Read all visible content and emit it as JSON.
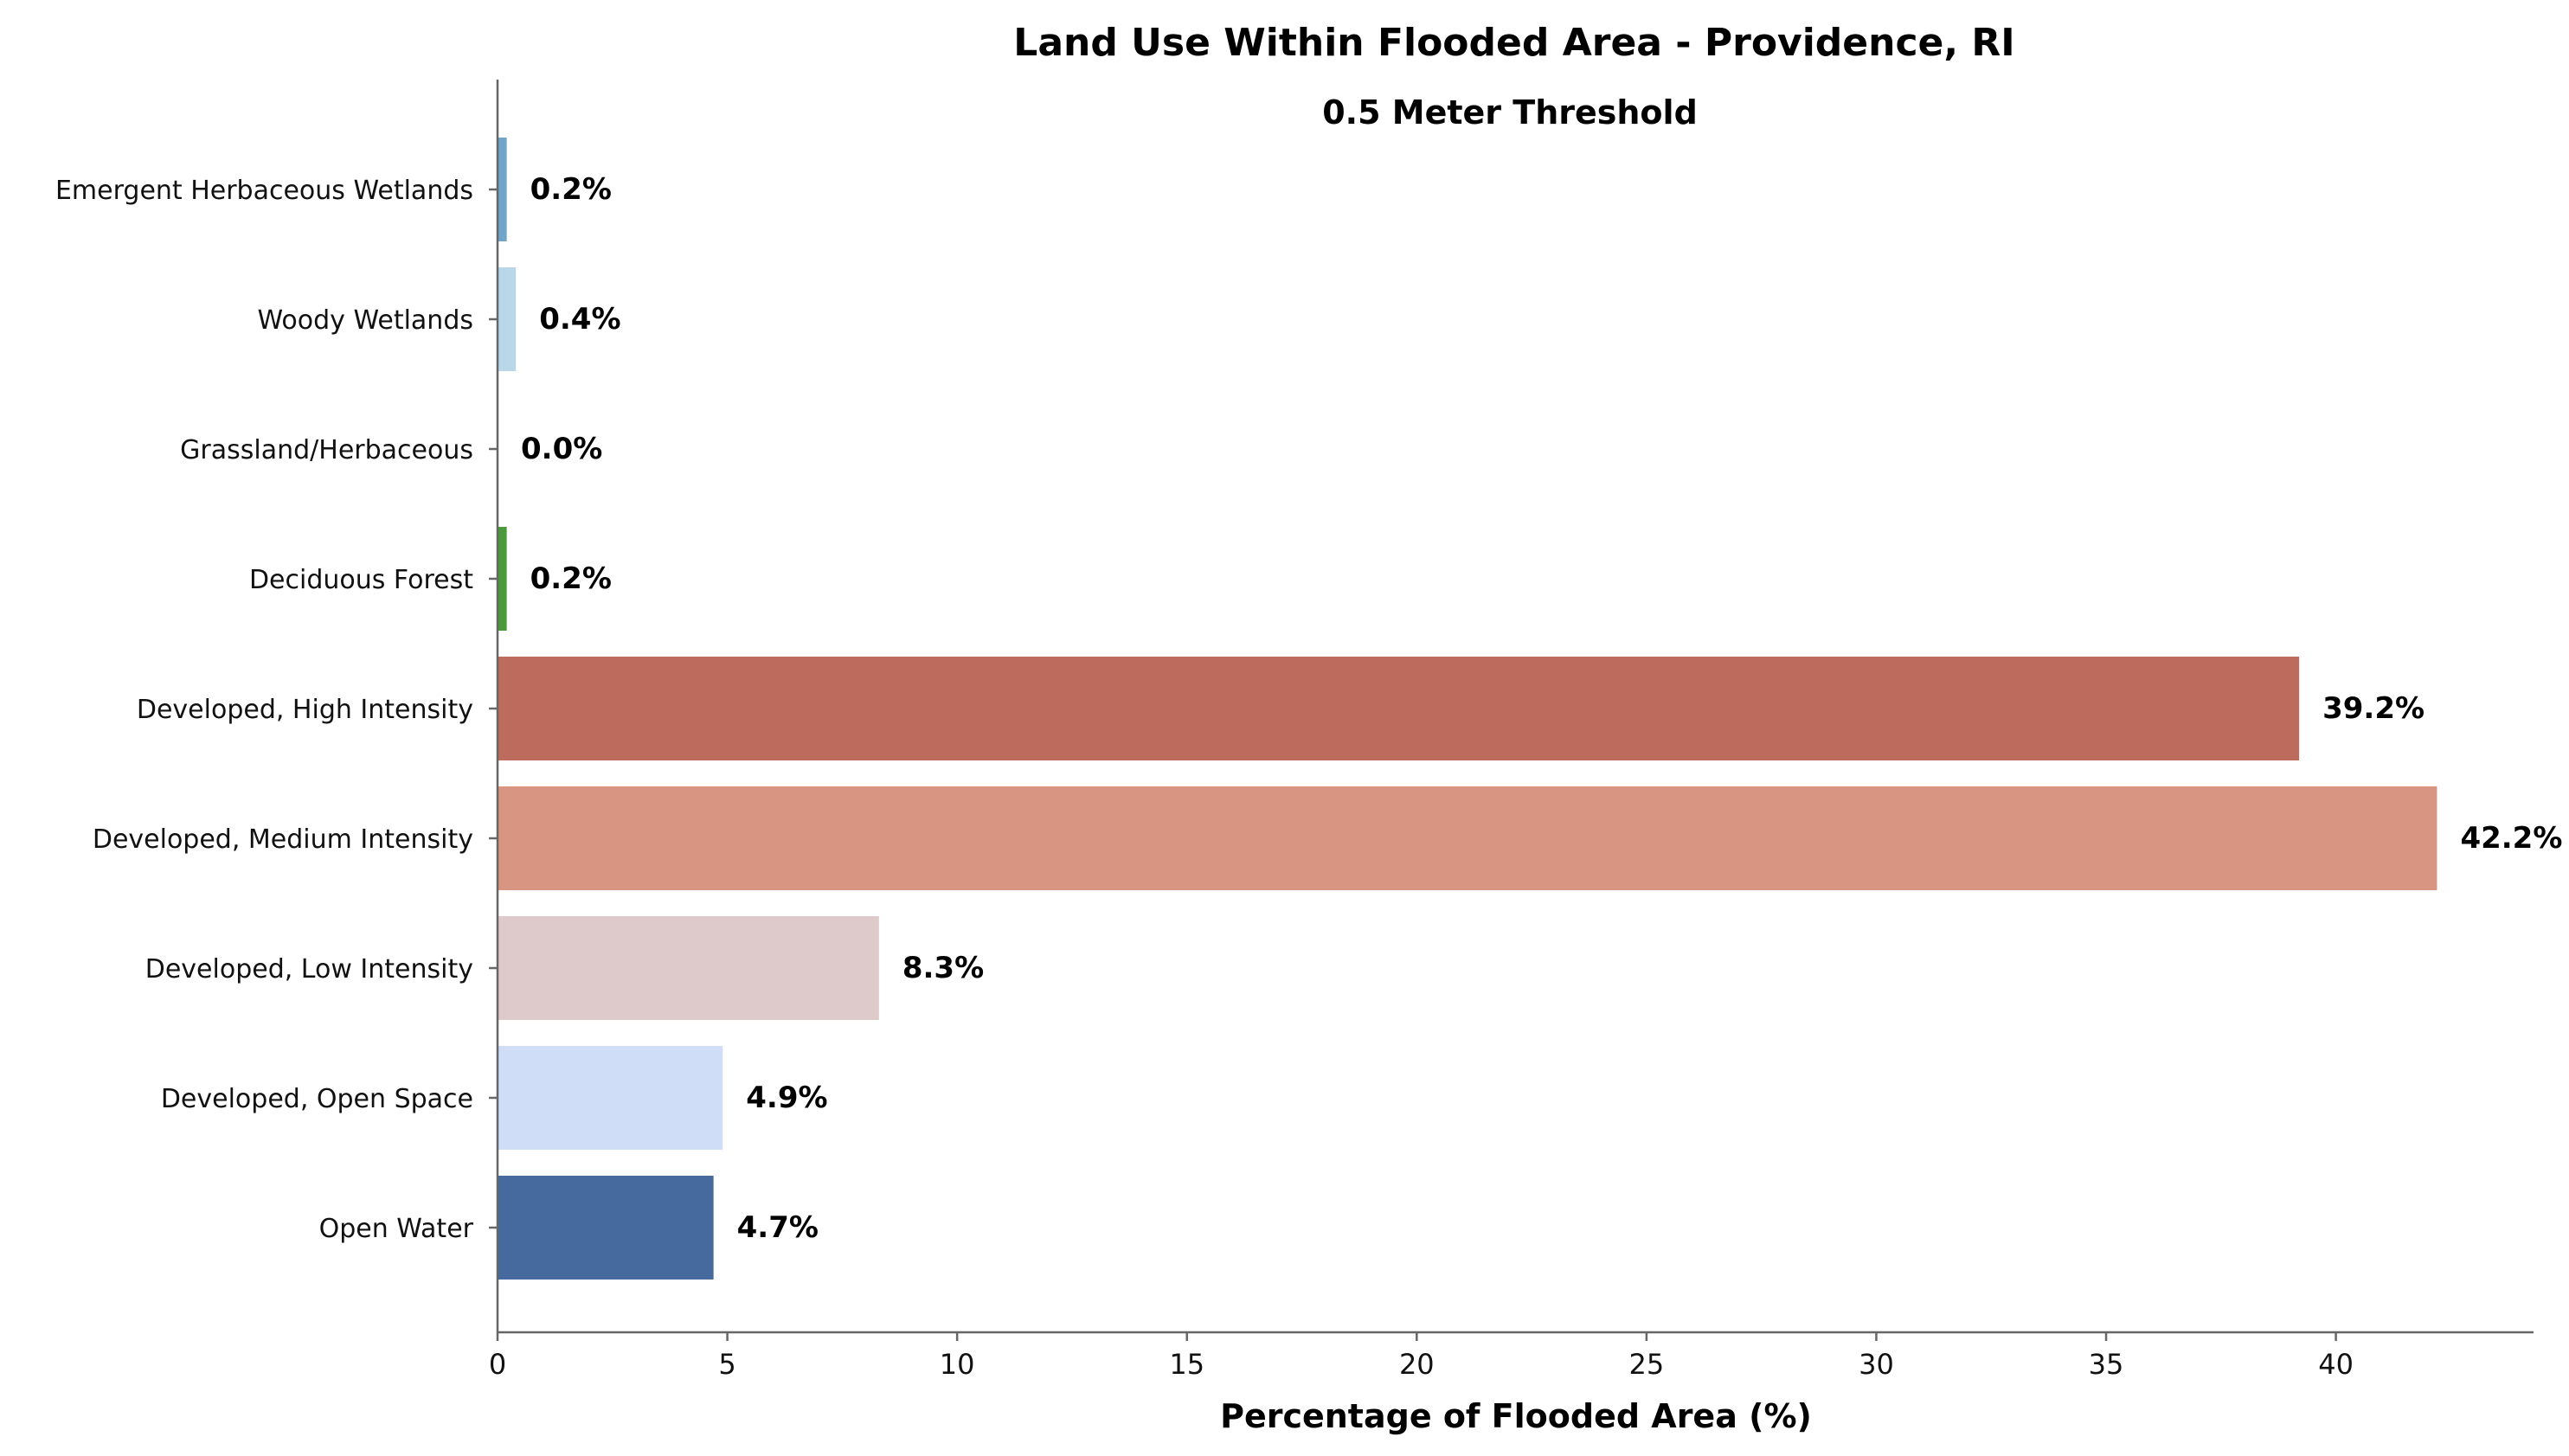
{
  "chart_data": {
    "type": "bar",
    "orientation": "horizontal",
    "title": "Land Use Within Flooded Area - Providence, RI",
    "subtitle": "0.5 Meter Threshold",
    "xlabel": "Percentage of Flooded Area (%)",
    "ylabel": "",
    "xlim": [
      0,
      44.3
    ],
    "xticks": [
      0,
      5,
      10,
      15,
      20,
      25,
      30,
      35,
      40
    ],
    "xtick_labels": [
      "0",
      "5",
      "10",
      "15",
      "20",
      "25",
      "30",
      "35",
      "40"
    ],
    "grid": false,
    "categories": [
      "Emergent Herbaceous Wetlands",
      "Woody Wetlands",
      "Grassland/Herbaceous",
      "Deciduous Forest",
      "Developed, High Intensity",
      "Developed, Medium Intensity",
      "Developed, Low Intensity",
      "Developed, Open Space",
      "Open Water"
    ],
    "values": [
      0.2,
      0.4,
      0.0,
      0.2,
      39.2,
      42.2,
      8.3,
      4.9,
      4.7
    ],
    "value_labels": [
      "0.2%",
      "0.4%",
      "0.0%",
      "0.2%",
      "39.2%",
      "42.2%",
      "8.3%",
      "4.9%",
      "4.7%"
    ],
    "colors": [
      "#70a4c8",
      "#b8d8ea",
      "#dfe8d0",
      "#4a9a3a",
      "#bd6b5d",
      "#d89582",
      "#decacb",
      "#d0ddf7",
      "#476a9e"
    ]
  }
}
